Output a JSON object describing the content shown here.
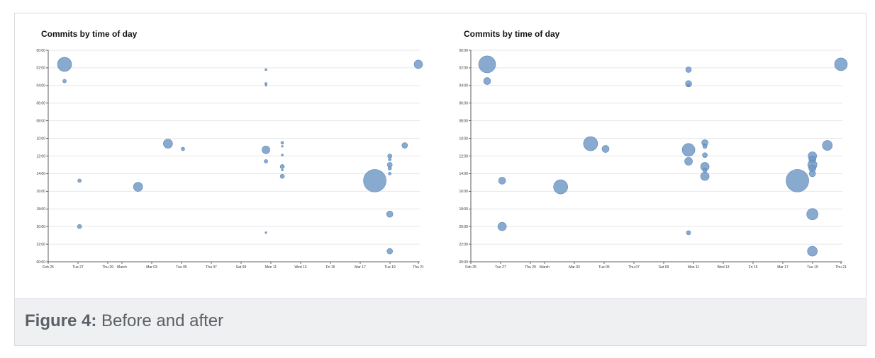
{
  "figure": {
    "label": "Figure 4:",
    "caption": "Before and after"
  },
  "colors": {
    "bubble": "#6f97c4",
    "bubble_stroke": "#5c86b8",
    "grid": "#e6e6e6",
    "axis": "#333333"
  },
  "chart_data": [
    {
      "type": "scatter",
      "title": "Commits by time of day",
      "xlabel": "",
      "ylabel": "",
      "x_ticks": [
        "Feb 25",
        "Tue 27",
        "Thu 29",
        "March",
        "Mar 03",
        "Tue 05",
        "Thu 07",
        "Sat 09",
        "Mon 11",
        "Wed 13",
        "Fri 15",
        "Mar 17",
        "Tue 19",
        "Thu 21"
      ],
      "y_ticks": [
        "00:00",
        "02:00",
        "04:00",
        "06:00",
        "08:00",
        "10:00",
        "12:00",
        "14:00",
        "16:00",
        "18:00",
        "20:00",
        "22:00",
        "00:00"
      ],
      "xlim_days": [
        0,
        25
      ],
      "ylim_hours": [
        0,
        24
      ],
      "points": [
        {
          "day": 1.2,
          "hour": 1.6,
          "size": 10
        },
        {
          "day": 1.2,
          "hour": 3.5,
          "size": 2.5
        },
        {
          "day": 2.3,
          "hour": 14.8,
          "size": 2.5
        },
        {
          "day": 2.3,
          "hour": 20.0,
          "size": 3
        },
        {
          "day": 6.6,
          "hour": 15.5,
          "size": 6.5
        },
        {
          "day": 8.8,
          "hour": 10.6,
          "size": 6.5
        },
        {
          "day": 9.9,
          "hour": 11.2,
          "size": 2.5
        },
        {
          "day": 16.0,
          "hour": 2.2,
          "size": 1.5
        },
        {
          "day": 16.0,
          "hour": 3.8,
          "size": 1.8
        },
        {
          "day": 16.0,
          "hour": 4.0,
          "size": 1
        },
        {
          "day": 16.0,
          "hour": 11.3,
          "size": 5.5
        },
        {
          "day": 16.0,
          "hour": 12.6,
          "size": 2.5
        },
        {
          "day": 16.0,
          "hour": 20.7,
          "size": 1.3
        },
        {
          "day": 17.2,
          "hour": 10.5,
          "size": 2
        },
        {
          "day": 17.2,
          "hour": 10.9,
          "size": 1.3
        },
        {
          "day": 17.2,
          "hour": 11.9,
          "size": 1.5
        },
        {
          "day": 17.2,
          "hour": 13.2,
          "size": 3
        },
        {
          "day": 17.2,
          "hour": 13.6,
          "size": 1.3
        },
        {
          "day": 17.2,
          "hour": 14.3,
          "size": 3
        },
        {
          "day": 24.0,
          "hour": 14.8,
          "size": 16
        },
        {
          "day": 25.1,
          "hour": 12.0,
          "size": 3
        },
        {
          "day": 25.1,
          "hour": 12.4,
          "size": 2
        },
        {
          "day": 25.1,
          "hour": 13.0,
          "size": 3.5
        },
        {
          "day": 25.1,
          "hour": 13.4,
          "size": 2.5
        },
        {
          "day": 25.1,
          "hour": 14.0,
          "size": 2
        },
        {
          "day": 25.1,
          "hour": 18.6,
          "size": 4.5
        },
        {
          "day": 25.1,
          "hour": 22.8,
          "size": 4
        },
        {
          "day": 26.2,
          "hour": 10.8,
          "size": 4
        },
        {
          "day": 27.2,
          "hour": 1.6,
          "size": 6
        }
      ]
    },
    {
      "type": "scatter",
      "title": "Commits by time of day",
      "xlabel": "",
      "ylabel": "",
      "x_ticks": [
        "Feb 25",
        "Tue 27",
        "Thu 29",
        "March",
        "Mar 03",
        "Tue 05",
        "Thu 07",
        "Sat 09",
        "Mon 11",
        "Wed 13",
        "Fri 15",
        "Mar 17",
        "Tue 19",
        "Thu 21"
      ],
      "y_ticks": [
        "00:00",
        "02:00",
        "04:00",
        "06:00",
        "08:00",
        "10:00",
        "12:00",
        "14:00",
        "16:00",
        "18:00",
        "20:00",
        "22:00",
        "00:00"
      ],
      "xlim_days": [
        0,
        25
      ],
      "ylim_hours": [
        0,
        24
      ],
      "points": [
        {
          "day": 1.2,
          "hour": 1.6,
          "size": 12
        },
        {
          "day": 1.2,
          "hour": 3.5,
          "size": 5
        },
        {
          "day": 2.3,
          "hour": 14.8,
          "size": 5
        },
        {
          "day": 2.3,
          "hour": 20.0,
          "size": 6
        },
        {
          "day": 6.6,
          "hour": 15.5,
          "size": 10
        },
        {
          "day": 8.8,
          "hour": 10.6,
          "size": 10
        },
        {
          "day": 9.9,
          "hour": 11.2,
          "size": 5
        },
        {
          "day": 16.0,
          "hour": 2.2,
          "size": 4
        },
        {
          "day": 16.0,
          "hour": 3.8,
          "size": 4.5
        },
        {
          "day": 16.0,
          "hour": 4.0,
          "size": 2
        },
        {
          "day": 16.0,
          "hour": 11.3,
          "size": 9
        },
        {
          "day": 16.0,
          "hour": 12.6,
          "size": 5.5
        },
        {
          "day": 16.0,
          "hour": 20.7,
          "size": 3
        },
        {
          "day": 17.2,
          "hour": 10.5,
          "size": 4.5
        },
        {
          "day": 17.2,
          "hour": 10.9,
          "size": 3
        },
        {
          "day": 17.2,
          "hour": 11.9,
          "size": 3.5
        },
        {
          "day": 17.2,
          "hour": 13.2,
          "size": 6
        },
        {
          "day": 17.2,
          "hour": 13.6,
          "size": 3
        },
        {
          "day": 17.2,
          "hour": 14.3,
          "size": 6
        },
        {
          "day": 24.0,
          "hour": 14.8,
          "size": 16
        },
        {
          "day": 25.1,
          "hour": 12.0,
          "size": 6
        },
        {
          "day": 25.1,
          "hour": 12.4,
          "size": 5
        },
        {
          "day": 25.1,
          "hour": 13.0,
          "size": 6.5
        },
        {
          "day": 25.1,
          "hour": 13.4,
          "size": 5
        },
        {
          "day": 25.1,
          "hour": 14.0,
          "size": 4.5
        },
        {
          "day": 25.1,
          "hour": 18.6,
          "size": 8
        },
        {
          "day": 25.1,
          "hour": 22.8,
          "size": 7
        },
        {
          "day": 26.2,
          "hour": 10.8,
          "size": 7
        },
        {
          "day": 27.2,
          "hour": 1.6,
          "size": 9
        }
      ]
    }
  ]
}
